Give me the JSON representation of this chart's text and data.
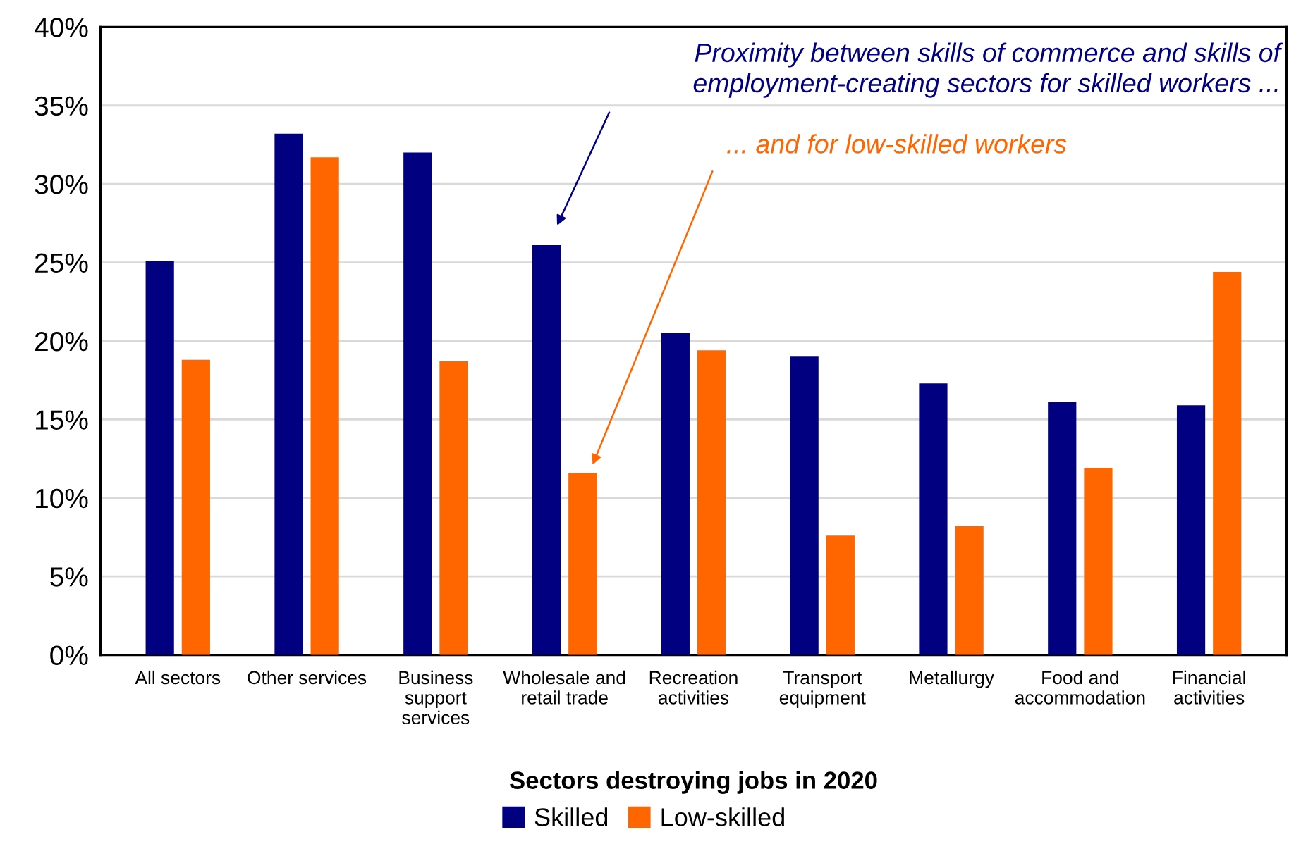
{
  "chart_data": {
    "type": "bar",
    "categories": [
      "All sectors",
      "Other services",
      "Business\nsupport\nservices",
      "Wholesale and\nretail trade",
      "Recreation\nactivities",
      "Transport\nequipment",
      "Metallurgy",
      "Food and\naccommodation",
      "Financial\nactivities"
    ],
    "series": [
      {
        "name": "Skilled",
        "color": "#000080",
        "values": [
          25.1,
          33.2,
          32.0,
          26.1,
          20.5,
          19.0,
          17.3,
          16.1,
          15.9
        ]
      },
      {
        "name": "Low-skilled",
        "color": "#ff6600",
        "values": [
          18.8,
          31.7,
          18.7,
          11.6,
          19.4,
          7.6,
          8.2,
          11.9,
          24.4
        ]
      }
    ],
    "xlabel": "Sectors destroying jobs in 2020",
    "ylim": [
      0,
      40
    ],
    "yticks": [
      {
        "value": 0,
        "label": "0%"
      },
      {
        "value": 5,
        "label": "5%"
      },
      {
        "value": 10,
        "label": "10%"
      },
      {
        "value": 15,
        "label": "15%"
      },
      {
        "value": 20,
        "label": "20%"
      },
      {
        "value": 25,
        "label": "25%"
      },
      {
        "value": 30,
        "label": "30%"
      },
      {
        "value": 35,
        "label": "35%"
      },
      {
        "value": 40,
        "label": "40%"
      }
    ],
    "grid": "y",
    "legend": "bottom",
    "annotations": [
      "Proximity between skills of commerce and skills of\nemployment-creating sectors for skilled workers ...",
      "... and for low-skilled workers"
    ]
  }
}
